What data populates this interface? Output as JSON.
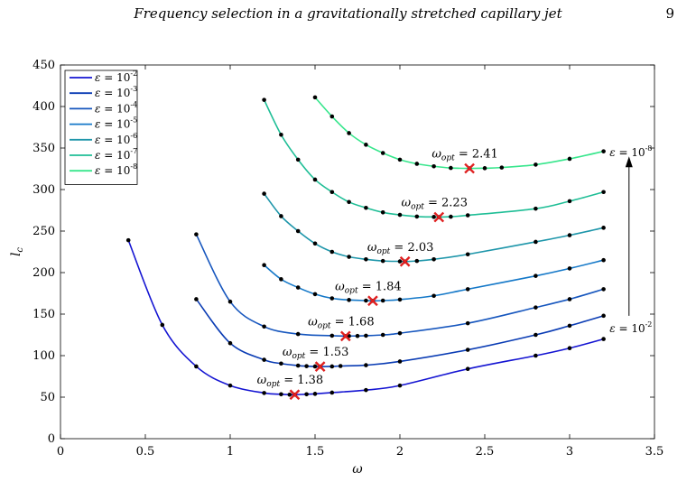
{
  "header": {
    "title": "Frequency selection in a gravitationally stretched capillary jet",
    "page_number": "9"
  },
  "chart_data": {
    "type": "line",
    "title": "",
    "xlabel": "ω",
    "ylabel": "l_c",
    "xlim": [
      0,
      3.5
    ],
    "ylim": [
      0,
      450
    ],
    "xticks": [
      0,
      0.5,
      1,
      1.5,
      2,
      2.5,
      3,
      3.5
    ],
    "yticks": [
      0,
      50,
      100,
      150,
      200,
      250,
      300,
      350,
      400,
      450
    ],
    "xtick_labels": [
      "0",
      "0.5",
      "1",
      "1.5",
      "2",
      "2.5",
      "3",
      "3.5"
    ],
    "ytick_labels": [
      "0",
      "50",
      "100",
      "150",
      "200",
      "250",
      "300",
      "350",
      "400",
      "450"
    ],
    "grid": false,
    "legend": "top-left",
    "series": [
      {
        "name": "ε = 10⁻²",
        "exp": "-2",
        "color": "#1414d2",
        "x": [
          0.4,
          0.6,
          0.8,
          1.0,
          1.2,
          1.3,
          1.35,
          1.38,
          1.45,
          1.5,
          1.6,
          1.8,
          2.0,
          2.4,
          2.8,
          3.0,
          3.2
        ],
        "y": [
          239,
          137,
          87,
          64,
          55,
          53.5,
          53,
          53,
          53.5,
          54,
          55.5,
          58.5,
          64,
          84,
          100,
          109,
          120
        ],
        "opt": {
          "x": 1.38,
          "y": 53,
          "label": "ω_opt = 1.38",
          "value": "1.38"
        }
      },
      {
        "name": "ε = 10⁻³",
        "exp": "-3",
        "color": "#0a3cb4",
        "x": [
          0.8,
          1.0,
          1.2,
          1.3,
          1.4,
          1.45,
          1.5,
          1.53,
          1.6,
          1.65,
          1.8,
          2.0,
          2.4,
          2.8,
          3.0,
          3.2
        ],
        "y": [
          168,
          115,
          95,
          90.5,
          88,
          87.3,
          87,
          86.8,
          87,
          87.5,
          88.5,
          93,
          107,
          125,
          136,
          148
        ],
        "opt": {
          "x": 1.53,
          "y": 86.8,
          "label": "ω_opt = 1.53",
          "value": "1.53"
        }
      },
      {
        "name": "ε = 10⁻⁴",
        "exp": "-4",
        "color": "#1656be",
        "x": [
          0.8,
          1.0,
          1.2,
          1.4,
          1.6,
          1.68,
          1.7,
          1.75,
          1.8,
          1.9,
          2.0,
          2.4,
          2.8,
          3.0,
          3.2
        ],
        "y": [
          246,
          165,
          135,
          126,
          124,
          123.5,
          123.6,
          123.7,
          124,
          125,
          127,
          139,
          158,
          168,
          180
        ],
        "opt": {
          "x": 1.68,
          "y": 123.5,
          "label": "ω_opt = 1.68",
          "value": "1.68"
        }
      },
      {
        "name": "ε = 10⁻⁵",
        "exp": "-5",
        "color": "#1478c8",
        "x": [
          1.2,
          1.3,
          1.4,
          1.5,
          1.6,
          1.7,
          1.8,
          1.84,
          1.9,
          2.0,
          2.2,
          2.4,
          2.8,
          3.0,
          3.2
        ],
        "y": [
          209,
          192,
          182,
          174,
          169,
          167,
          166.3,
          166,
          166.3,
          167.5,
          172,
          180,
          196,
          205,
          215
        ],
        "opt": {
          "x": 1.84,
          "y": 166,
          "label": "ω_opt = 1.84",
          "value": "1.84"
        }
      },
      {
        "name": "ε = 10⁻⁶",
        "exp": "-6",
        "color": "#1e96aa",
        "x": [
          1.2,
          1.3,
          1.4,
          1.5,
          1.6,
          1.7,
          1.8,
          1.9,
          2.0,
          2.03,
          2.1,
          2.2,
          2.4,
          2.8,
          3.0,
          3.2
        ],
        "y": [
          295,
          268,
          250,
          235,
          225,
          219,
          216,
          214,
          213.5,
          213.3,
          214,
          216,
          222,
          237,
          245,
          254
        ],
        "opt": {
          "x": 2.03,
          "y": 213.3,
          "label": "ω_opt = 2.03",
          "value": "2.03"
        }
      },
      {
        "name": "ε = 10⁻⁷",
        "exp": "-7",
        "color": "#1fbe96",
        "x": [
          1.2,
          1.3,
          1.4,
          1.5,
          1.6,
          1.7,
          1.8,
          1.9,
          2.0,
          2.1,
          2.2,
          2.23,
          2.3,
          2.4,
          2.8,
          3.0,
          3.2
        ],
        "y": [
          408,
          366,
          336,
          312,
          297,
          285,
          278,
          272.5,
          269.5,
          267.5,
          267,
          266.8,
          267.3,
          269,
          277,
          286,
          297
        ],
        "opt": {
          "x": 2.23,
          "y": 266.8,
          "label": "ω_opt = 2.23",
          "value": "2.23"
        }
      },
      {
        "name": "ε = 10⁻⁸",
        "exp": "-8",
        "color": "#37e68c",
        "x": [
          1.5,
          1.6,
          1.7,
          1.8,
          1.9,
          2.0,
          2.1,
          2.2,
          2.3,
          2.41,
          2.5,
          2.6,
          2.8,
          3.0,
          3.2
        ],
        "y": [
          411,
          388,
          368,
          354,
          344,
          336,
          331,
          328,
          326,
          325.5,
          325.7,
          326.5,
          330,
          337,
          346
        ],
        "opt": {
          "x": 2.41,
          "y": 325.5,
          "label": "ω_opt = 2.41",
          "value": "2.41"
        }
      }
    ],
    "annotations": {
      "arrow_label_top": "ε = 10⁻⁸",
      "arrow_label_bottom": "ε = 10⁻²",
      "arrow_x": 3.35,
      "arrow_y_from": 148,
      "arrow_y_to": 340
    }
  },
  "colors": {
    "marker_opt": "#e02020",
    "axis": "#000000"
  }
}
